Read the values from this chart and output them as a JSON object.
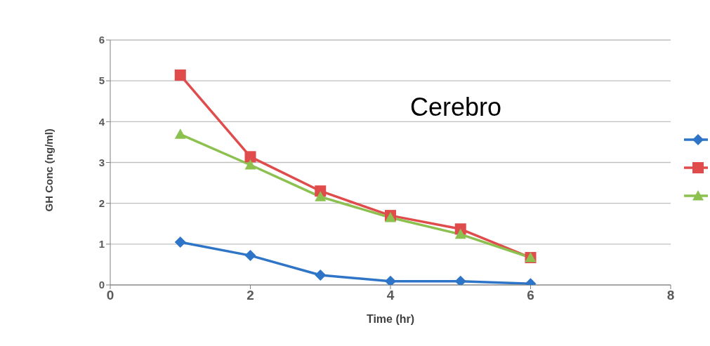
{
  "chart_data": {
    "type": "line",
    "xlabel": "Time (hr)",
    "ylabel": "GH Conc (ng/ml)",
    "annotations": [
      "Cerebro"
    ],
    "x": [
      1,
      2,
      3,
      4,
      5,
      6
    ],
    "xlim": [
      0,
      8
    ],
    "xticks": [
      0,
      2,
      4,
      6,
      8
    ],
    "ylim": [
      0,
      6
    ],
    "yticks": [
      0,
      1,
      2,
      3,
      4,
      5,
      6
    ],
    "grid": "y",
    "series": [
      {
        "color": "#2e75c8",
        "marker": "diamond",
        "values": [
          1.05,
          0.72,
          0.24,
          0.09,
          0.09,
          0.03
        ]
      },
      {
        "color": "#e04b4b",
        "marker": "square",
        "values": [
          5.14,
          3.14,
          2.3,
          1.7,
          1.37,
          0.67
        ]
      },
      {
        "color": "#8cc04f",
        "marker": "triangle",
        "values": [
          3.69,
          2.94,
          2.16,
          1.65,
          1.24,
          0.67
        ]
      }
    ]
  }
}
